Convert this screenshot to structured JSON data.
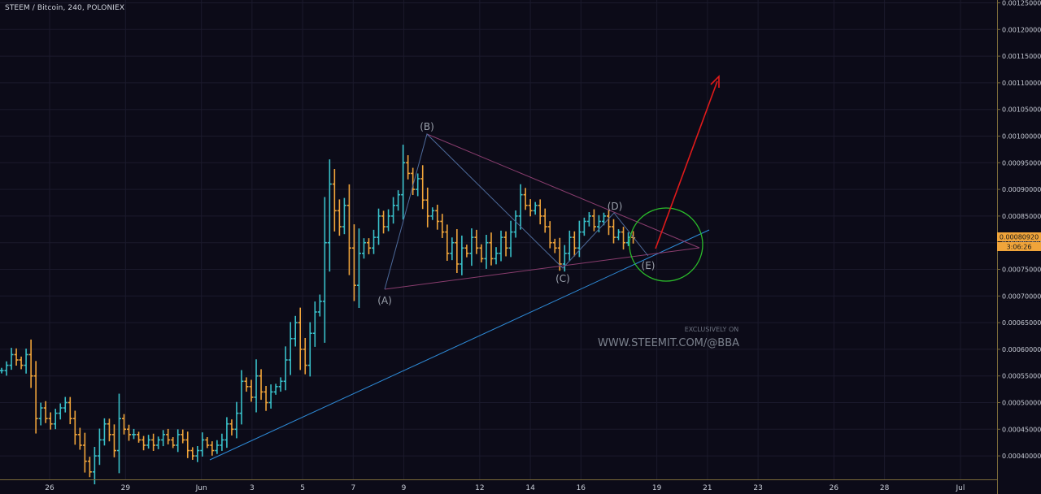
{
  "header": {
    "title": "STEEM / Bitcoin, 240, POLONIEX"
  },
  "price_tag": "0.00080920",
  "countdown_tag": "3:06:26",
  "watermark": {
    "small": "EXCLUSIVELY ON",
    "big": "WWW.STEEMIT.COM/@BBA"
  },
  "colors": {
    "background": "#0c0b18",
    "up": "#39c0c9",
    "down": "#f0a43a",
    "triangle": "#8a3d6e",
    "trendline": "#2e8bd8",
    "wave": "#4d6a9a",
    "circle": "#2bbd2b",
    "arrow": "#e01a1a",
    "tag": "#f0a43a"
  },
  "chart_data": {
    "type": "ohlc",
    "title": "STEEM / Bitcoin, 240, POLONIEX",
    "symbol": "STEEM / Bitcoin",
    "interval": "240",
    "exchange": "POLONIEX",
    "last_price": 0.0008092,
    "ylim": [
      0.00035,
      0.00125
    ],
    "y_ticks": [
      0.0004,
      0.00045,
      0.0005,
      0.00055,
      0.0006,
      0.00065,
      0.0007,
      0.00075,
      0.0008,
      0.00085,
      0.0009,
      0.00095,
      0.001,
      0.00105,
      0.0011,
      0.00115,
      0.0012,
      0.00125
    ],
    "x_ticks": [
      {
        "label": "26",
        "day": 0
      },
      {
        "label": "29",
        "day": 3
      },
      {
        "label": "Jun",
        "day": 6
      },
      {
        "label": "3",
        "day": 8
      },
      {
        "label": "5",
        "day": 10
      },
      {
        "label": "7",
        "day": 12
      },
      {
        "label": "9",
        "day": 14
      },
      {
        "label": "12",
        "day": 17
      },
      {
        "label": "14",
        "day": 19
      },
      {
        "label": "16",
        "day": 21
      },
      {
        "label": "19",
        "day": 24
      },
      {
        "label": "21",
        "day": 26
      },
      {
        "label": "23",
        "day": 28
      },
      {
        "label": "26",
        "day": 31
      },
      {
        "label": "28",
        "day": 33
      },
      {
        "label": "Jul",
        "day": 36
      }
    ],
    "closes": [
      0.00056,
      0.00057,
      0.00059,
      0.00058,
      0.00057,
      0.00059,
      0.00055,
      0.00047,
      0.00049,
      0.00047,
      0.00046,
      0.00048,
      0.00049,
      0.0005,
      0.00047,
      0.00044,
      0.00042,
      0.00039,
      0.00037,
      0.0004,
      0.00043,
      0.00046,
      0.00044,
      0.00041,
      0.00047,
      0.00045,
      0.00044,
      0.00044,
      0.00043,
      0.00042,
      0.00043,
      0.00042,
      0.00043,
      0.00044,
      0.00043,
      0.00042,
      0.00044,
      0.00043,
      0.00041,
      0.0004,
      0.00041,
      0.00043,
      0.00042,
      0.00041,
      0.00042,
      0.00043,
      0.00046,
      0.00045,
      0.00048,
      0.00054,
      0.00053,
      0.00051,
      0.00055,
      0.00052,
      0.0005,
      0.00052,
      0.00053,
      0.00054,
      0.00058,
      0.00062,
      0.00065,
      0.0006,
      0.00057,
      0.00063,
      0.00067,
      0.00069,
      0.0008,
      0.00091,
      0.00086,
      0.00083,
      0.00087,
      0.00079,
      0.00072,
      0.00078,
      0.0008,
      0.00079,
      0.00081,
      0.00085,
      0.00083,
      0.00085,
      0.00087,
      0.00089,
      0.00095,
      0.00093,
      0.0009,
      0.00092,
      0.00088,
      0.00085,
      0.00086,
      0.00084,
      0.00082,
      0.00078,
      0.0008,
      0.00076,
      0.00079,
      0.00078,
      0.00081,
      0.00079,
      0.00077,
      0.0008,
      0.00077,
      0.00078,
      0.00081,
      0.00079,
      0.00082,
      0.00085,
      0.00089,
      0.00087,
      0.00086,
      0.00087,
      0.00085,
      0.00083,
      0.0008,
      0.00079,
      0.00076,
      0.00078,
      0.00081,
      0.00079,
      0.00082,
      0.00084,
      0.00085,
      0.00083,
      0.00084,
      0.00085,
      0.00083,
      0.00081,
      0.00082,
      0.0008,
      0.00081,
      0.000809
    ],
    "annotations": {
      "wave_points": [
        {
          "label": "(A)",
          "day": 14.1,
          "price": 0.00071
        },
        {
          "label": "(B)",
          "day": 16.4,
          "price": 0.001
        },
        {
          "label": "(C)",
          "day": 20.0,
          "price": 0.000755
        },
        {
          "label": "(D)",
          "day": 21.9,
          "price": 0.00085
        },
        {
          "label": "(E)",
          "day": 23.1,
          "price": 0.00077
        }
      ]
    }
  }
}
